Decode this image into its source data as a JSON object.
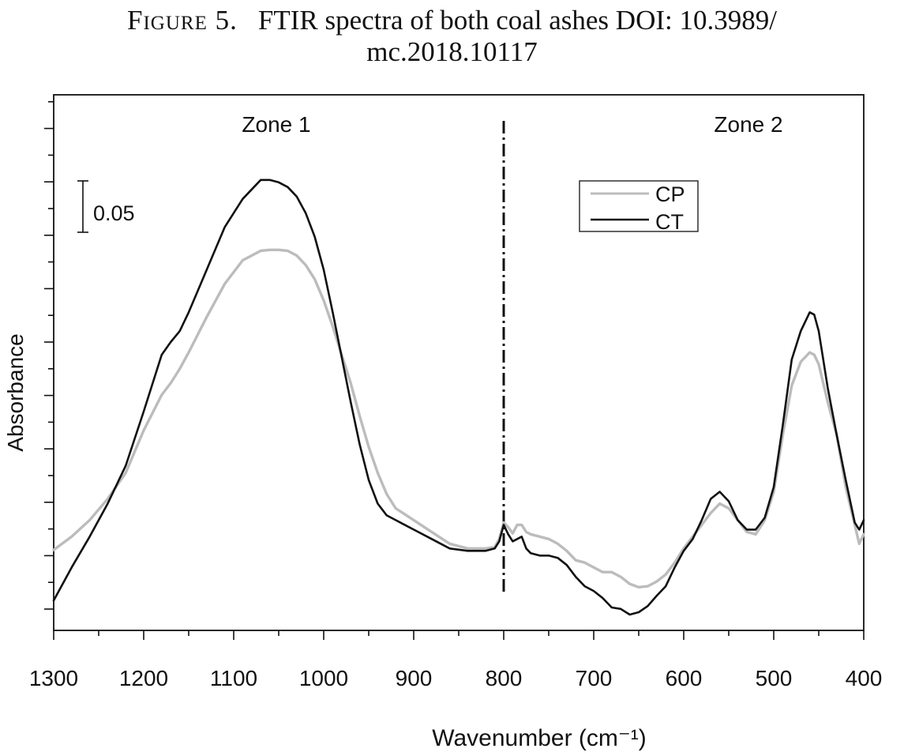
{
  "caption": {
    "label": "Figure 5.",
    "text_line1": "FTIR spectra of both coal ashes  DOI: 10.3989/",
    "text_line2": "mc.2018.10117"
  },
  "colors": {
    "CP": "#bcbcbc",
    "CT": "#111111",
    "axis": "#111111"
  },
  "chart_data": {
    "type": "line",
    "title": "",
    "xlabel": "Wavenumber (cm⁻¹)",
    "ylabel": "Absorbance",
    "xlim": [
      1300,
      400
    ],
    "x_reversed": true,
    "ylim": [
      0,
      1
    ],
    "y_ticks_labeled": false,
    "xticks": [
      "1300",
      "1200",
      "1100",
      "1000",
      "900",
      "800",
      "700",
      "600",
      "500",
      "400"
    ],
    "grid": false,
    "legend_position": "top-right",
    "annotations": {
      "zone1": "Zone 1",
      "zone2": "Zone 2",
      "scale_bar_label": "0.05",
      "divider_at": 800
    },
    "series": [
      {
        "name": "CP",
        "color": "#bcbcbc",
        "x": [
          1300,
          1280,
          1260,
          1240,
          1220,
          1200,
          1180,
          1170,
          1160,
          1150,
          1130,
          1110,
          1090,
          1070,
          1060,
          1050,
          1040,
          1030,
          1020,
          1010,
          1000,
          990,
          980,
          970,
          960,
          950,
          940,
          930,
          920,
          900,
          880,
          860,
          840,
          820,
          810,
          805,
          800,
          795,
          790,
          785,
          780,
          775,
          770,
          760,
          750,
          740,
          730,
          720,
          710,
          700,
          690,
          680,
          670,
          660,
          650,
          640,
          630,
          620,
          610,
          600,
          590,
          580,
          570,
          560,
          550,
          540,
          530,
          520,
          510,
          500,
          490,
          480,
          470,
          460,
          455,
          450,
          440,
          430,
          420,
          410,
          405,
          400
        ],
        "y": [
          0.137,
          0.165,
          0.2,
          0.245,
          0.3,
          0.39,
          0.465,
          0.49,
          0.52,
          0.555,
          0.63,
          0.7,
          0.75,
          0.77,
          0.772,
          0.772,
          0.77,
          0.76,
          0.74,
          0.71,
          0.665,
          0.61,
          0.55,
          0.49,
          0.42,
          0.355,
          0.3,
          0.255,
          0.225,
          0.2,
          0.175,
          0.15,
          0.14,
          0.14,
          0.143,
          0.16,
          0.195,
          0.185,
          0.172,
          0.19,
          0.19,
          0.175,
          0.17,
          0.165,
          0.16,
          0.15,
          0.135,
          0.115,
          0.11,
          0.1,
          0.09,
          0.09,
          0.08,
          0.065,
          0.058,
          0.06,
          0.07,
          0.085,
          0.11,
          0.14,
          0.165,
          0.19,
          0.215,
          0.235,
          0.225,
          0.2,
          0.175,
          0.17,
          0.2,
          0.26,
          0.38,
          0.485,
          0.535,
          0.555,
          0.55,
          0.53,
          0.45,
          0.38,
          0.27,
          0.19,
          0.15,
          0.17
        ]
      },
      {
        "name": "CT",
        "color": "#111111",
        "x": [
          1300,
          1280,
          1260,
          1240,
          1220,
          1200,
          1180,
          1170,
          1160,
          1150,
          1130,
          1110,
          1090,
          1070,
          1060,
          1050,
          1040,
          1030,
          1020,
          1010,
          1000,
          990,
          980,
          970,
          960,
          950,
          940,
          930,
          920,
          900,
          880,
          860,
          840,
          820,
          810,
          805,
          800,
          795,
          790,
          785,
          780,
          775,
          770,
          760,
          750,
          740,
          730,
          720,
          710,
          700,
          690,
          680,
          670,
          660,
          650,
          640,
          630,
          620,
          610,
          600,
          590,
          580,
          570,
          560,
          550,
          540,
          530,
          520,
          510,
          500,
          490,
          480,
          470,
          460,
          455,
          450,
          440,
          430,
          420,
          410,
          405,
          400
        ],
        "y": [
          0.03,
          0.1,
          0.165,
          0.235,
          0.315,
          0.43,
          0.55,
          0.577,
          0.6,
          0.64,
          0.73,
          0.82,
          0.88,
          0.92,
          0.92,
          0.915,
          0.905,
          0.885,
          0.85,
          0.8,
          0.73,
          0.64,
          0.545,
          0.45,
          0.36,
          0.285,
          0.235,
          0.21,
          0.2,
          0.18,
          0.16,
          0.14,
          0.135,
          0.135,
          0.14,
          0.155,
          0.19,
          0.17,
          0.155,
          0.16,
          0.165,
          0.14,
          0.13,
          0.125,
          0.125,
          0.12,
          0.105,
          0.08,
          0.06,
          0.05,
          0.035,
          0.015,
          0.012,
          0.0,
          0.005,
          0.018,
          0.04,
          0.06,
          0.1,
          0.135,
          0.16,
          0.2,
          0.245,
          0.26,
          0.24,
          0.2,
          0.18,
          0.18,
          0.205,
          0.27,
          0.4,
          0.54,
          0.6,
          0.64,
          0.635,
          0.6,
          0.48,
          0.38,
          0.285,
          0.195,
          0.18,
          0.2
        ]
      }
    ]
  }
}
